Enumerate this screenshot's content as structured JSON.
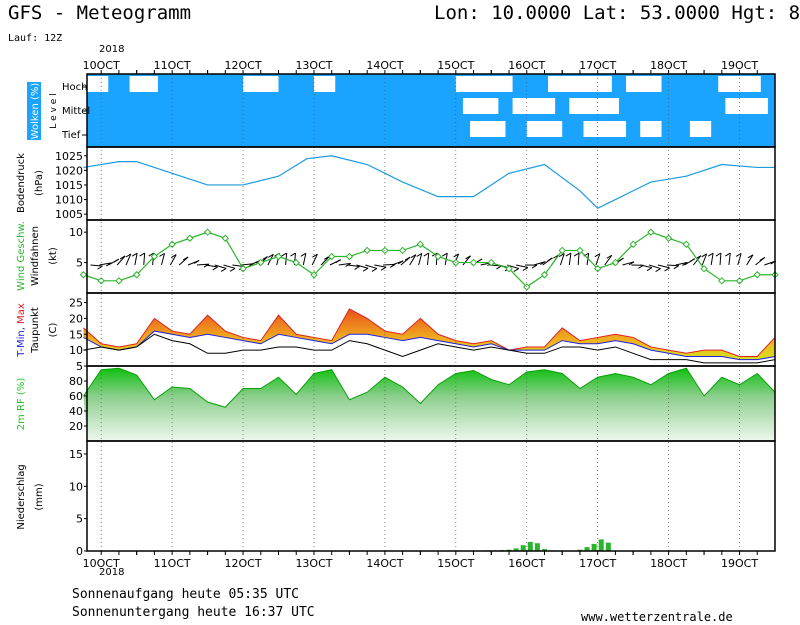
{
  "header": {
    "title": "GFS - Meteogramm",
    "location": "Lon: 10.0000  Lat: 53.0000  Hgt: 8",
    "run": "Lauf: 12Z",
    "year_top": "2018",
    "year_bottom": "2018"
  },
  "footer": {
    "sunrise": "Sonnenaufgang heute 05:35 UTC",
    "sunset": "Sonnenuntergang heute 16:37 UTC",
    "website": "www.wetterzentrale.de"
  },
  "colors": {
    "cloud": "#1aa3ff",
    "pressure": "#1a9be0",
    "wind": "#2cb52c",
    "tmax": "#e02020",
    "tmin": "#2020e0",
    "rh": "#22c422",
    "precip": "#2bb32b"
  },
  "chart_data": [
    {
      "type": "area",
      "name": "clouds",
      "ylabel_main": "Wolken (%)",
      "ylabel_level": "L e v e l",
      "levels": [
        "Hoch",
        "Mittel",
        "Tief"
      ],
      "x": [
        "10OCT",
        "11OCT",
        "12OCT",
        "13OCT",
        "14OCT",
        "15OCT",
        "16OCT",
        "17OCT",
        "18OCT",
        "19OCT"
      ],
      "xlim": [
        9.8,
        19.5
      ],
      "clear_spots": [
        {
          "level": "Hoch",
          "start": 9.8,
          "end": 10.1
        },
        {
          "level": "Hoch",
          "start": 10.4,
          "end": 10.8
        },
        {
          "level": "Hoch",
          "start": 12.0,
          "end": 12.5
        },
        {
          "level": "Hoch",
          "start": 13.0,
          "end": 13.3
        },
        {
          "level": "Hoch",
          "start": 15.0,
          "end": 15.8
        },
        {
          "level": "Hoch",
          "start": 16.3,
          "end": 17.2
        },
        {
          "level": "Hoch",
          "start": 17.4,
          "end": 17.9
        },
        {
          "level": "Hoch",
          "start": 18.7,
          "end": 19.3
        },
        {
          "level": "Mittel",
          "start": 15.1,
          "end": 15.6
        },
        {
          "level": "Mittel",
          "start": 15.8,
          "end": 16.4
        },
        {
          "level": "Mittel",
          "start": 16.6,
          "end": 17.3
        },
        {
          "level": "Mittel",
          "start": 18.8,
          "end": 19.4
        },
        {
          "level": "Tief",
          "start": 15.2,
          "end": 15.7
        },
        {
          "level": "Tief",
          "start": 16.0,
          "end": 16.5
        },
        {
          "level": "Tief",
          "start": 16.8,
          "end": 17.4
        },
        {
          "level": "Tief",
          "start": 17.6,
          "end": 17.9
        },
        {
          "level": "Tief",
          "start": 18.3,
          "end": 18.6
        }
      ]
    },
    {
      "type": "line",
      "name": "pressure",
      "ylabel": "Bodendruck",
      "unit": "(hPa)",
      "ylim": [
        1003,
        1028
      ],
      "yticks": [
        1005,
        1010,
        1015,
        1020,
        1025
      ],
      "x": [
        9.75,
        10.25,
        10.5,
        10.75,
        11.0,
        11.5,
        12.0,
        12.5,
        12.9,
        13.25,
        13.75,
        14.25,
        14.75,
        15.25,
        15.75,
        16.25,
        16.75,
        17.0,
        17.25,
        17.75,
        18.25,
        18.75,
        19.25,
        19.5
      ],
      "values": [
        1021,
        1023,
        1023,
        1021,
        1019,
        1015,
        1015,
        1018,
        1024,
        1025,
        1022,
        1016,
        1011,
        1011,
        1019,
        1022,
        1013,
        1007,
        1010,
        1016,
        1018,
        1022,
        1021,
        1021
      ]
    },
    {
      "type": "line",
      "name": "wind",
      "ylabel": "Wind Geschw.",
      "ylabel2": "Windfahnen",
      "unit": "(kt)",
      "ylim": [
        0,
        12
      ],
      "yticks": [
        5,
        10
      ],
      "x": [
        9.75,
        10.0,
        10.25,
        10.5,
        10.75,
        11.0,
        11.25,
        11.5,
        11.75,
        12.0,
        12.25,
        12.5,
        12.75,
        13.0,
        13.25,
        13.5,
        13.75,
        14.0,
        14.25,
        14.5,
        14.75,
        15.0,
        15.25,
        15.5,
        15.75,
        16.0,
        16.25,
        16.5,
        16.75,
        17.0,
        17.25,
        17.5,
        17.75,
        18.0,
        18.25,
        18.5,
        18.75,
        19.0,
        19.25,
        19.5
      ],
      "values": [
        3,
        2,
        2,
        3,
        6,
        8,
        9,
        10,
        9,
        4,
        5,
        6,
        5,
        3,
        6,
        6,
        7,
        7,
        7,
        8,
        6,
        5,
        5,
        5,
        4,
        1,
        3,
        7,
        7,
        4,
        5,
        8,
        10,
        9,
        8,
        4,
        2,
        2,
        3,
        3
      ]
    },
    {
      "type": "area",
      "name": "temperature",
      "ylabel_min": "T-Min,",
      "ylabel_max": "Max",
      "ylabel2": "Taupunkt",
      "unit": "(C)",
      "ylim": [
        5,
        28
      ],
      "yticks": [
        5,
        10,
        15,
        20,
        25
      ],
      "x": [
        9.75,
        10.0,
        10.25,
        10.5,
        10.75,
        11.0,
        11.25,
        11.5,
        11.75,
        12.0,
        12.25,
        12.5,
        12.75,
        13.0,
        13.25,
        13.5,
        13.75,
        14.0,
        14.25,
        14.5,
        14.75,
        15.0,
        15.25,
        15.5,
        15.75,
        16.0,
        16.25,
        16.5,
        16.75,
        17.0,
        17.25,
        17.5,
        17.75,
        18.0,
        18.25,
        18.5,
        18.75,
        19.0,
        19.25,
        19.5
      ],
      "tmax": [
        17,
        12,
        11,
        12,
        20,
        16,
        15,
        21,
        16,
        14,
        13,
        21,
        15,
        14,
        13,
        23,
        20,
        16,
        15,
        20,
        15,
        13,
        12,
        13,
        10,
        11,
        11,
        17,
        13,
        14,
        15,
        14,
        11,
        10,
        9,
        10,
        10,
        8,
        8,
        14
      ],
      "tmin": [
        14,
        11,
        10,
        11,
        16,
        15,
        14,
        15,
        14,
        13,
        12,
        15,
        14,
        13,
        12,
        15,
        15,
        14,
        13,
        14,
        13,
        12,
        11,
        12,
        10,
        10,
        10,
        13,
        12,
        12,
        13,
        12,
        10,
        9,
        8,
        8,
        8,
        7,
        7,
        8
      ],
      "dewpoint": [
        10,
        11,
        10,
        11,
        15,
        13,
        12,
        9,
        9,
        10,
        10,
        11,
        11,
        10,
        10,
        13,
        12,
        10,
        8,
        10,
        12,
        11,
        10,
        11,
        10,
        9,
        9,
        11,
        11,
        10,
        11,
        9,
        7,
        7,
        7,
        6,
        6,
        6,
        6,
        7
      ]
    },
    {
      "type": "area",
      "name": "humidity",
      "ylabel": "2m RF (%)",
      "ylim": [
        0,
        100
      ],
      "yticks": [
        20,
        40,
        60,
        80
      ],
      "x": [
        9.75,
        10.0,
        10.25,
        10.5,
        10.75,
        11.0,
        11.25,
        11.5,
        11.75,
        12.0,
        12.25,
        12.5,
        12.75,
        13.0,
        13.25,
        13.5,
        13.75,
        14.0,
        14.25,
        14.5,
        14.75,
        15.0,
        15.25,
        15.5,
        15.75,
        16.0,
        16.25,
        16.5,
        16.75,
        17.0,
        17.25,
        17.5,
        17.75,
        18.0,
        18.25,
        18.5,
        18.75,
        19.0,
        19.25,
        19.5
      ],
      "values": [
        60,
        95,
        97,
        88,
        55,
        72,
        70,
        52,
        45,
        70,
        70,
        85,
        62,
        90,
        95,
        55,
        65,
        85,
        72,
        50,
        75,
        90,
        94,
        82,
        75,
        92,
        95,
        90,
        70,
        85,
        90,
        85,
        75,
        90,
        97,
        60,
        85,
        75,
        90,
        65
      ]
    },
    {
      "type": "bar",
      "name": "precipitation",
      "ylabel": "Niederschlag",
      "unit": "(mm)",
      "ylim": [
        0,
        17
      ],
      "yticks": [
        0,
        5,
        10,
        15
      ],
      "x": [
        15.45,
        15.55,
        15.65,
        15.75,
        15.85,
        15.95,
        16.05,
        16.15,
        16.25,
        16.35,
        16.75,
        16.85,
        16.95,
        17.05,
        17.15,
        18.75
      ],
      "values": [
        0.1,
        0.1,
        0.15,
        0.2,
        0.4,
        0.9,
        1.4,
        1.2,
        0.3,
        0.1,
        0.2,
        0.6,
        1.1,
        1.8,
        1.3,
        0.1
      ]
    }
  ]
}
